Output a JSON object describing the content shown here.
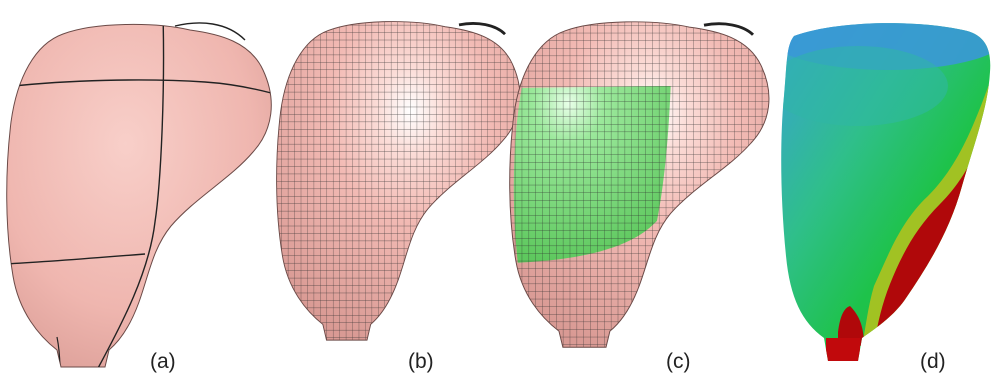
{
  "figure": {
    "panels": [
      {
        "id": "a",
        "label": "(a)"
      },
      {
        "id": "b",
        "label": "(b)"
      },
      {
        "id": "c",
        "label": "(c)"
      },
      {
        "id": "d",
        "label": "(d)"
      }
    ]
  },
  "colors": {
    "background": "#ffffff",
    "surface_pink": "#f1b9b3",
    "mesh_line": "#2b2b2b",
    "patch_green": "#7fdc7f",
    "heat_blue": "#3aa0d8",
    "heat_green": "#1ec24a",
    "heat_red": "#b0080a"
  }
}
